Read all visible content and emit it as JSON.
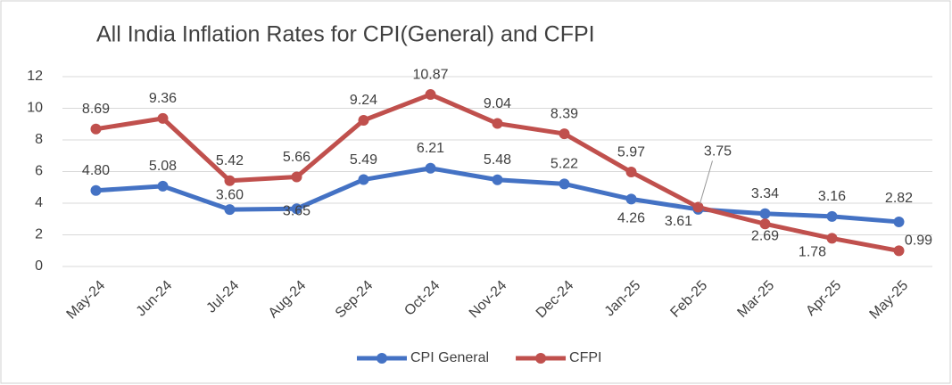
{
  "chart_data": {
    "type": "line",
    "title": "All India Inflation Rates for CPI(General) and CFPI",
    "categories": [
      "May-24",
      "Jun-24",
      "Jul-24",
      "Aug-24",
      "Sep-24",
      "Oct-24",
      "Nov-24",
      "Dec-24",
      "Jan-25",
      "Feb-25",
      "Mar-25",
      "Apr-25",
      "May-25"
    ],
    "series": [
      {
        "name": "CPI General",
        "color": "#4472c4",
        "values": [
          4.8,
          5.08,
          3.6,
          3.65,
          5.49,
          6.21,
          5.48,
          5.22,
          4.26,
          3.61,
          3.34,
          3.16,
          2.82
        ],
        "value_labels": [
          "4.80",
          "5.08",
          "3.60",
          "3.65",
          "5.49",
          "6.21",
          "5.48",
          "5.22",
          "4.26",
          "3.61",
          "3.34",
          "3.16",
          "2.82"
        ]
      },
      {
        "name": "CFPI",
        "color": "#c0504d",
        "values": [
          8.69,
          9.36,
          5.42,
          5.66,
          9.24,
          10.87,
          9.04,
          8.39,
          5.97,
          3.75,
          2.69,
          1.78,
          0.99
        ],
        "value_labels": [
          "8.69",
          "9.36",
          "5.42",
          "5.66",
          "9.24",
          "10.87",
          "9.04",
          "8.39",
          "5.97",
          "3.75",
          "2.69",
          "1.78",
          "0.99"
        ]
      }
    ],
    "ylim": [
      0,
      12
    ],
    "yticks": [
      0,
      2,
      4,
      6,
      8,
      10,
      12
    ],
    "grid": true,
    "legend": "bottom"
  }
}
